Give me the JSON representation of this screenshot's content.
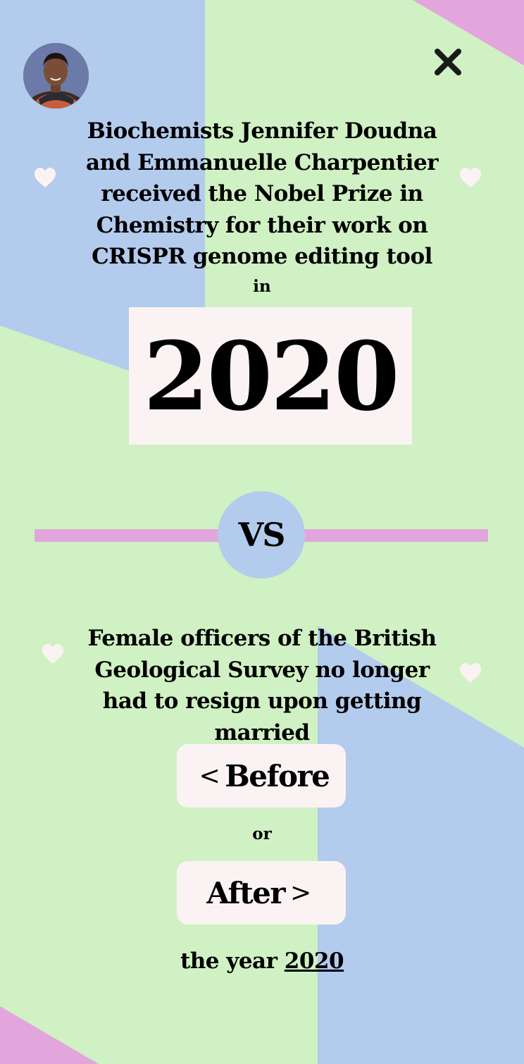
{
  "colors": {
    "background_green": "#d0f1c3",
    "accent_blue": "#b3cbed",
    "accent_pink": "#e2a5dc",
    "card_white": "#fbf3f3",
    "heart_white": "#fbf3f3"
  },
  "header": {
    "avatar_icon": "portrait-photo",
    "close_icon": "close-x-icon"
  },
  "event": {
    "description": "Biochemists Jennifer Doudna and Emmanuelle Charpentier received the Nobel Prize in Chemistry for their work on CRISPR genome editing tool",
    "in_label": "in",
    "year": "2020"
  },
  "versus": {
    "label": "VS"
  },
  "question": {
    "description": "Female officers of the British Geological Survey no longer had to resign upon getting married"
  },
  "choices": {
    "before_arrow": "<",
    "before_label": "Before",
    "or_label": "or",
    "after_label": "After",
    "after_arrow": ">"
  },
  "footer": {
    "prefix": "the year",
    "year": "2020"
  },
  "decorations": {
    "icon": "heart-icon"
  }
}
